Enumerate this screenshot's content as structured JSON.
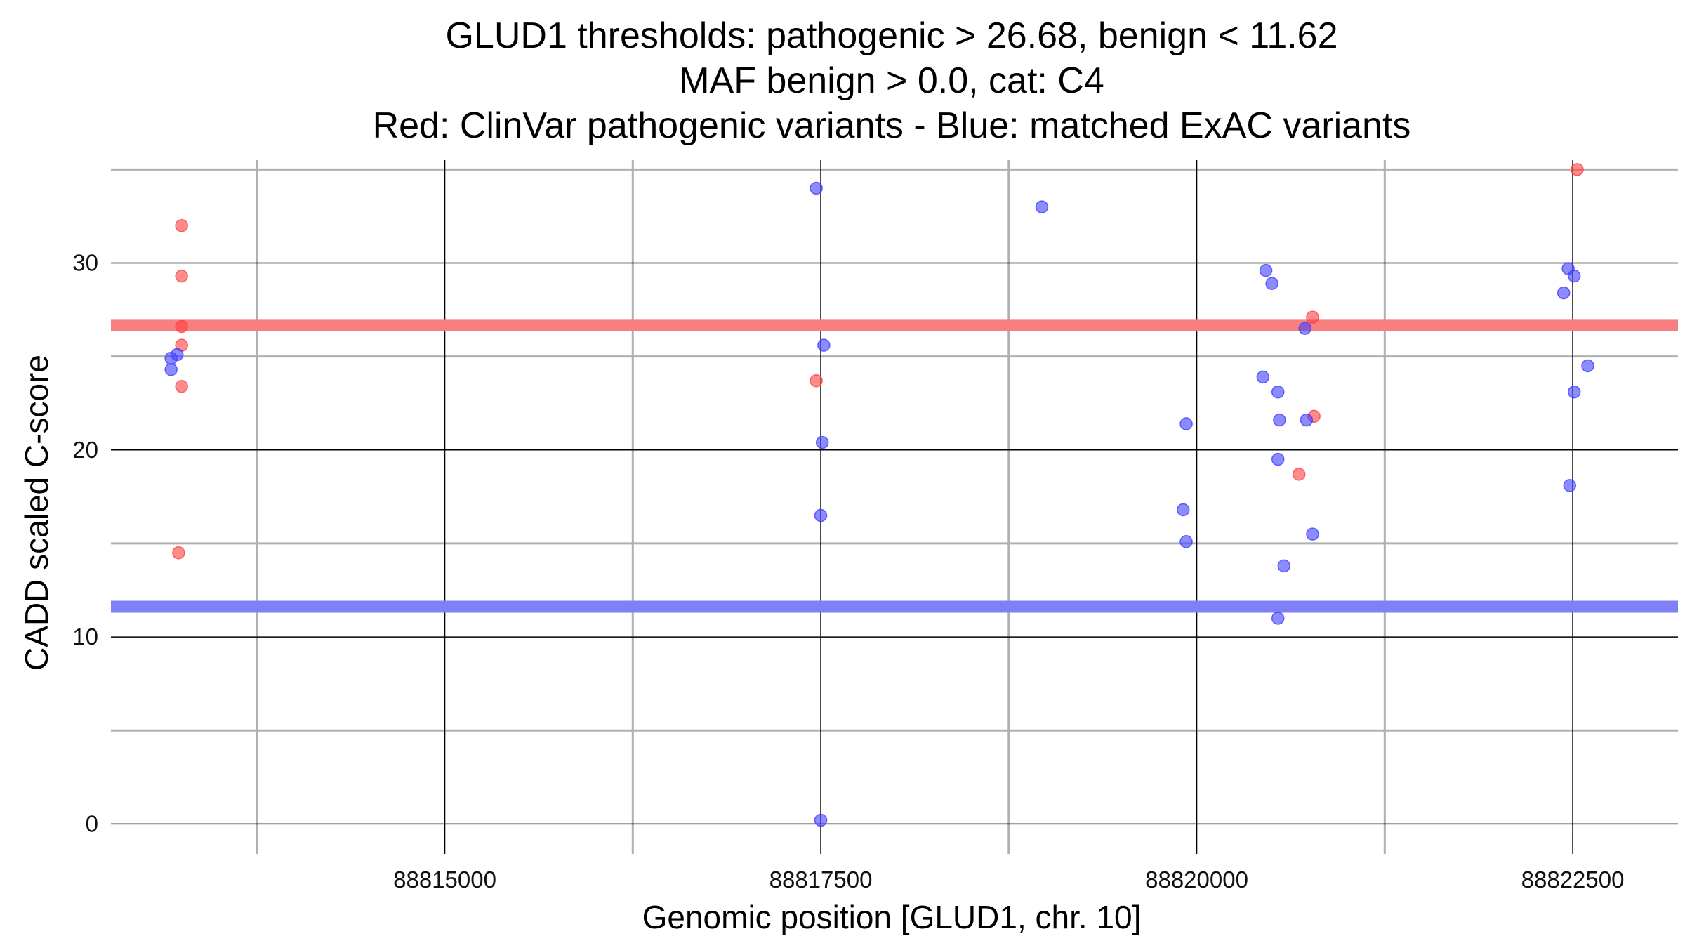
{
  "chart_data": {
    "type": "scatter",
    "title_lines": [
      "GLUD1 thresholds: pathogenic > 26.68, benign < 11.62",
      "MAF benign > 0.0, cat: C4",
      "Red: ClinVar pathogenic variants - Blue: matched ExAC variants"
    ],
    "xlabel": "Genomic position [GLUD1, chr. 10]",
    "ylabel": "CADD scaled C-score",
    "xlim": [
      88812780,
      88823200
    ],
    "ylim": [
      -1.6,
      35.5
    ],
    "x_major_ticks": [
      88815000,
      88817500,
      88820000,
      88822500
    ],
    "x_minor_gridlines": [
      88813750,
      88816250,
      88818750,
      88821250
    ],
    "y_major_ticks": [
      0,
      10,
      20,
      30
    ],
    "y_minor_gridlines": [
      5,
      15,
      25,
      35
    ],
    "grid": true,
    "thresholds": [
      {
        "label": "pathogenic",
        "value": 26.68,
        "color": "#f77f7f"
      },
      {
        "label": "benign",
        "value": 11.62,
        "color": "#7f7ff7"
      }
    ],
    "colors": {
      "clinvar": "#ff4040",
      "exac": "#4040ff"
    },
    "series": [
      {
        "key": "clinvar",
        "points": [
          [
            88813250,
            32.0
          ],
          [
            88813250,
            29.3
          ],
          [
            88813250,
            26.6
          ],
          [
            88813250,
            25.6
          ],
          [
            88813250,
            23.4
          ],
          [
            88813230,
            14.5
          ],
          [
            88817470,
            23.7
          ],
          [
            88820770,
            27.1
          ],
          [
            88820780,
            21.8
          ],
          [
            88820680,
            18.7
          ],
          [
            88822530,
            35.0
          ]
        ]
      },
      {
        "key": "exac",
        "points": [
          [
            88813180,
            24.9
          ],
          [
            88813180,
            24.3
          ],
          [
            88813220,
            25.1
          ],
          [
            88817470,
            34.0
          ],
          [
            88817520,
            25.6
          ],
          [
            88817510,
            20.4
          ],
          [
            88817500,
            16.5
          ],
          [
            88817500,
            0.2
          ],
          [
            88818970,
            33.0
          ],
          [
            88819930,
            21.4
          ],
          [
            88819910,
            16.8
          ],
          [
            88819930,
            15.1
          ],
          [
            88820460,
            29.6
          ],
          [
            88820500,
            28.9
          ],
          [
            88820440,
            23.9
          ],
          [
            88820540,
            23.1
          ],
          [
            88820550,
            21.6
          ],
          [
            88820540,
            19.5
          ],
          [
            88820580,
            13.8
          ],
          [
            88820540,
            11.0
          ],
          [
            88820720,
            26.5
          ],
          [
            88820730,
            21.6
          ],
          [
            88820770,
            15.5
          ],
          [
            88822470,
            29.7
          ],
          [
            88822510,
            29.3
          ],
          [
            88822440,
            28.4
          ],
          [
            88822600,
            24.5
          ],
          [
            88822510,
            23.1
          ],
          [
            88822480,
            18.1
          ]
        ]
      }
    ]
  }
}
